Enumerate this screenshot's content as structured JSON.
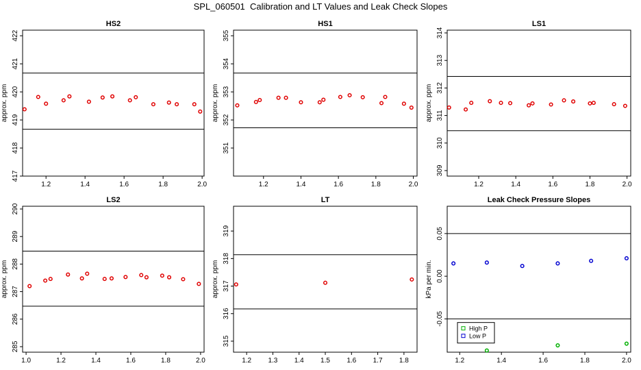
{
  "title": "SPL_060501  Calibration and LT Values and Leak Check Slopes",
  "chart_data": [
    {
      "type": "scatter",
      "title": "HS2",
      "ylabel": "approx. ppm",
      "xlim": [
        1.08,
        2.01
      ],
      "ylim": [
        417,
        422.2
      ],
      "xticks": [
        "1.2",
        "1.4",
        "1.6",
        "1.8",
        "2.0"
      ],
      "yticks": [
        "417",
        "418",
        "419",
        "420",
        "421",
        "422"
      ],
      "hlines": [
        420.67,
        418.67
      ],
      "series": [
        {
          "color": "#e00000",
          "x": [
            1.09,
            1.16,
            1.2,
            1.29,
            1.32,
            1.42,
            1.49,
            1.54,
            1.63,
            1.66,
            1.75,
            1.83,
            1.87,
            1.96,
            1.99
          ],
          "y": [
            419.38,
            419.82,
            419.58,
            419.7,
            419.84,
            419.65,
            419.8,
            419.84,
            419.7,
            419.81,
            419.56,
            419.62,
            419.56,
            419.56,
            419.3
          ]
        }
      ]
    },
    {
      "type": "scatter",
      "title": "HS1",
      "ylabel": "approx. ppm",
      "xlim": [
        1.04,
        2.02
      ],
      "ylim": [
        350,
        355.2
      ],
      "xticks": [
        "1.2",
        "1.4",
        "1.6",
        "1.8",
        "2.0"
      ],
      "yticks": [
        "351",
        "352",
        "353",
        "354",
        "355"
      ],
      "hlines": [
        353.67,
        351.72
      ],
      "series": [
        {
          "color": "#e00000",
          "x": [
            1.06,
            1.16,
            1.18,
            1.28,
            1.32,
            1.4,
            1.5,
            1.52,
            1.61,
            1.66,
            1.73,
            1.83,
            1.85,
            1.95,
            1.99
          ],
          "y": [
            352.52,
            352.64,
            352.71,
            352.79,
            352.79,
            352.63,
            352.63,
            352.72,
            352.82,
            352.88,
            352.81,
            352.6,
            352.82,
            352.58,
            352.44
          ]
        }
      ]
    },
    {
      "type": "scatter",
      "title": "LS1",
      "ylabel": "approx. ppm",
      "xlim": [
        1.03,
        2.02
      ],
      "ylim": [
        308.8,
        314.1
      ],
      "xticks": [
        "1.2",
        "1.4",
        "1.6",
        "1.8",
        "2.0"
      ],
      "yticks": [
        "309",
        "310",
        "311",
        "312",
        "313",
        "314"
      ],
      "hlines": [
        312.42,
        310.45
      ],
      "series": [
        {
          "color": "#e00000",
          "x": [
            1.04,
            1.13,
            1.16,
            1.26,
            1.32,
            1.37,
            1.47,
            1.49,
            1.59,
            1.66,
            1.71,
            1.8,
            1.82,
            1.93,
            1.99
          ],
          "y": [
            311.29,
            311.22,
            311.46,
            311.52,
            311.46,
            311.45,
            311.37,
            311.44,
            311.4,
            311.55,
            311.51,
            311.44,
            311.46,
            311.41,
            311.35
          ]
        }
      ]
    },
    {
      "type": "scatter",
      "title": "LS2",
      "ylabel": "approx. ppm",
      "xlim": [
        0.98,
        2.02
      ],
      "ylim": [
        284.8,
        290.1
      ],
      "xticks": [
        "1.0",
        "1.2",
        "1.4",
        "1.6",
        "1.8",
        "2.0"
      ],
      "yticks": [
        "285",
        "286",
        "287",
        "288",
        "289",
        "290"
      ],
      "hlines": [
        288.47,
        286.47
      ],
      "series": [
        {
          "color": "#e00000",
          "x": [
            1.02,
            1.11,
            1.14,
            1.24,
            1.32,
            1.35,
            1.45,
            1.49,
            1.57,
            1.66,
            1.69,
            1.78,
            1.82,
            1.9,
            1.99
          ],
          "y": [
            287.2,
            287.4,
            287.46,
            287.62,
            287.48,
            287.65,
            287.46,
            287.48,
            287.53,
            287.6,
            287.52,
            287.58,
            287.52,
            287.45,
            287.28
          ]
        }
      ]
    },
    {
      "type": "scatter",
      "title": "LT",
      "ylabel": "approx. ppm",
      "xlim": [
        1.15,
        1.85
      ],
      "ylim": [
        314.6,
        319.9
      ],
      "xticks": [
        "1.2",
        "1.3",
        "1.4",
        "1.5",
        "1.6",
        "1.7",
        "1.8"
      ],
      "yticks": [
        "315",
        "316",
        "317",
        "318",
        "319"
      ],
      "hlines": [
        318.14,
        316.17
      ],
      "series": [
        {
          "color": "#e00000",
          "x": [
            1.16,
            1.5,
            1.83
          ],
          "y": [
            317.06,
            317.12,
            317.24
          ]
        }
      ]
    },
    {
      "type": "scatter",
      "title": "Leak Check Pressure Slopes",
      "ylabel": "kPa per min.",
      "xlim": [
        1.14,
        2.02
      ],
      "ylim": [
        -0.089,
        0.082
      ],
      "xticks": [
        "1.2",
        "1.4",
        "1.6",
        "1.8",
        "2.0"
      ],
      "yticks": [
        "-0.05",
        "0.00",
        "0.05"
      ],
      "hlines": [
        0.05,
        -0.05
      ],
      "legend": {
        "position": "bottom-left",
        "entries": [
          "High P",
          "Low P"
        ]
      },
      "series": [
        {
          "name": "High P",
          "color": "#00b000",
          "x": [
            1.33,
            1.67,
            2.0
          ],
          "y": [
            -0.087,
            -0.081,
            -0.079
          ]
        },
        {
          "name": "Low P",
          "color": "#0000d0",
          "x": [
            1.17,
            1.33,
            1.5,
            1.67,
            1.83,
            2.0
          ],
          "y": [
            0.015,
            0.016,
            0.012,
            0.015,
            0.018,
            0.021
          ]
        }
      ]
    }
  ]
}
